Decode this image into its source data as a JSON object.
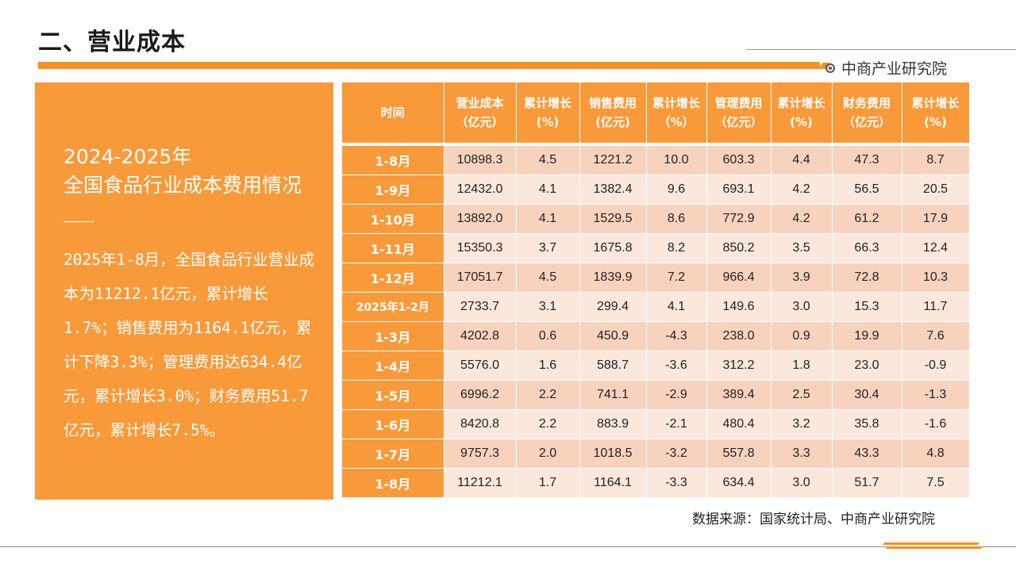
{
  "page": {
    "title": "二、营业成本",
    "brand": "中商产业研究院",
    "source": "数据来源：国家统计局、中商产业研究院"
  },
  "panel": {
    "year": "2024-2025年",
    "heading": "全国食品行业成本费用情况",
    "body": "2025年1-8月，全国食品行业营业成本为11212.1亿元，累计增长1.7%；销售费用为1164.1亿元，累计下降3.3%；管理费用达634.4亿元，累计增长3.0%；财务费用51.7亿元，累计增长7.5%。"
  },
  "table": {
    "headers": [
      "时间",
      "营业成本（亿元）",
      "累计增长(%)",
      "销售费用(亿元)",
      "累计增长（%）",
      "管理费用（亿元）",
      "累计增长(%)",
      "财务费用（亿元）",
      "累计增长(%)"
    ],
    "rows": [
      [
        "1-8月",
        "10898.3",
        "4.5",
        "1221.2",
        "10.0",
        "603.3",
        "4.4",
        "47.3",
        "8.7"
      ],
      [
        "1-9月",
        "12432.0",
        "4.1",
        "1382.4",
        "9.6",
        "693.1",
        "4.2",
        "56.5",
        "20.5"
      ],
      [
        "1-10月",
        "13892.0",
        "4.1",
        "1529.5",
        "8.6",
        "772.9",
        "4.2",
        "61.2",
        "17.9"
      ],
      [
        "1-11月",
        "15350.3",
        "3.7",
        "1675.8",
        "8.2",
        "850.2",
        "3.5",
        "66.3",
        "12.4"
      ],
      [
        "1-12月",
        "17051.7",
        "4.5",
        "1839.9",
        "7.2",
        "966.4",
        "3.9",
        "72.8",
        "10.3"
      ],
      [
        "2025年1-2月",
        "2733.7",
        "3.1",
        "299.4",
        "4.1",
        "149.6",
        "3.0",
        "15.3",
        "11.7"
      ],
      [
        "1-3月",
        "4202.8",
        "0.6",
        "450.9",
        "-4.3",
        "238.0",
        "0.9",
        "19.9",
        "7.6"
      ],
      [
        "1-4月",
        "5576.0",
        "1.6",
        "588.7",
        "-3.6",
        "312.2",
        "1.8",
        "23.0",
        "-0.9"
      ],
      [
        "1-5月",
        "6996.2",
        "2.2",
        "741.1",
        "-2.9",
        "389.4",
        "2.5",
        "30.4",
        "-1.3"
      ],
      [
        "1-6月",
        "8420.8",
        "2.2",
        "883.9",
        "-2.1",
        "480.4",
        "3.2",
        "35.8",
        "-1.6"
      ],
      [
        "1-7月",
        "9757.3",
        "2.0",
        "1018.5",
        "-3.2",
        "557.8",
        "3.3",
        "43.3",
        "4.8"
      ],
      [
        "1-8月",
        "11212.1",
        "1.7",
        "1164.1",
        "-3.3",
        "634.4",
        "3.0",
        "51.7",
        "7.5"
      ]
    ]
  },
  "icons": {
    "brand": "target-icon"
  },
  "colors": {
    "accent": "#F89A3A",
    "row_odd": "#F7D3BE",
    "row_even": "#FBE7DB"
  }
}
